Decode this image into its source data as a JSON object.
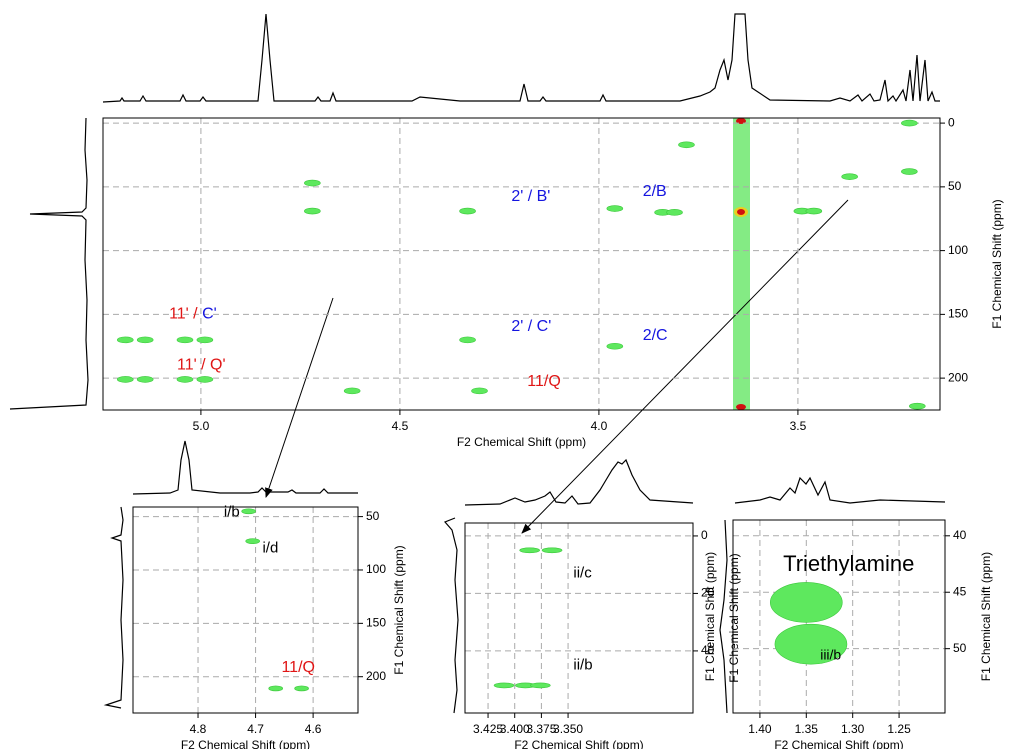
{
  "chart_data": [
    {
      "type": "contour",
      "x_label": "F2 Chemical Shift (ppm)",
      "y_label": "F1 Chemical Shift (ppm)",
      "xlim": [
        5.246,
        3.143
      ],
      "ylim": [
        -4,
        225
      ],
      "xticks": [
        {
          "value": 5.0,
          "label": "5.0"
        },
        4.5,
        {
          "value": 4.0,
          "label": "4.0"
        },
        3.5
      ],
      "yticks": [
        0,
        50,
        100,
        150,
        200
      ],
      "grid": true,
      "color": "#5ee85e",
      "peaks": [
        {
          "x": 4.72,
          "y": 47
        },
        {
          "x": 4.72,
          "y": 69
        },
        {
          "x": 4.33,
          "y": 69
        },
        {
          "x": 3.96,
          "y": 67
        },
        {
          "x": 3.84,
          "y": 70
        },
        {
          "x": 3.81,
          "y": 70
        },
        {
          "x": 3.49,
          "y": 69
        },
        {
          "x": 3.46,
          "y": 69
        },
        {
          "x": 4.33,
          "y": 170
        },
        {
          "x": 3.96,
          "y": 175
        },
        {
          "x": 5.19,
          "y": 170
        },
        {
          "x": 5.14,
          "y": 170
        },
        {
          "x": 5.04,
          "y": 170
        },
        {
          "x": 4.99,
          "y": 170
        },
        {
          "x": 5.19,
          "y": 201
        },
        {
          "x": 5.14,
          "y": 201
        },
        {
          "x": 5.04,
          "y": 201
        },
        {
          "x": 4.99,
          "y": 201
        },
        {
          "x": 4.3,
          "y": 210
        },
        {
          "x": 4.62,
          "y": 210
        },
        {
          "x": 3.78,
          "y": 17
        },
        {
          "x": 3.22,
          "y": 0
        },
        {
          "x": 3.22,
          "y": 38
        },
        {
          "x": 3.37,
          "y": 42
        },
        {
          "x": 3.2,
          "y": 222
        }
      ],
      "annotations": [
        {
          "x": 4.22,
          "y": 58,
          "parts": [
            {
              "text": "2' / B'",
              "color": "#1515e0"
            }
          ]
        },
        {
          "x": 3.89,
          "y": 54,
          "parts": [
            {
              "text": "2/B",
              "color": "#1515e0"
            }
          ]
        },
        {
          "x": 5.08,
          "y": 150,
          "parts": [
            {
              "text": "11' / ",
              "color": "#e01515"
            },
            {
              "text": "C'",
              "color": "#1515e0"
            }
          ]
        },
        {
          "x": 4.22,
          "y": 160,
          "parts": [
            {
              "text": "2' / C'",
              "color": "#1515e0"
            }
          ]
        },
        {
          "x": 3.89,
          "y": 167,
          "parts": [
            {
              "text": "2/C",
              "color": "#1515e0"
            }
          ]
        },
        {
          "x": 5.06,
          "y": 190,
          "parts": [
            {
              "text": "11' / Q'",
              "color": "#e01515"
            }
          ]
        },
        {
          "x": 4.18,
          "y": 203,
          "parts": [
            {
              "text": "11/Q",
              "color": "#e01515"
            }
          ]
        }
      ]
    },
    {
      "type": "contour",
      "x_label": "F2 Chemical Shift (ppm)",
      "y_label": "F1 Chemical Shift (ppm)",
      "xlim": [
        4.913,
        4.522
      ],
      "ylim": [
        41,
        234
      ],
      "xticks": [
        4.8,
        4.7,
        4.6
      ],
      "yticks": [
        50,
        100,
        150,
        200
      ],
      "grid": true,
      "color": "#5ee85e",
      "peaks": [
        {
          "x": 4.712,
          "y": 45
        },
        {
          "x": 4.705,
          "y": 73
        },
        {
          "x": 4.665,
          "y": 211
        },
        {
          "x": 4.62,
          "y": 211
        }
      ],
      "annotations": [
        {
          "x": 4.755,
          "y": 46,
          "parts": [
            {
              "text": "i/b",
              "color": "#000000"
            }
          ]
        },
        {
          "x": 4.688,
          "y": 80,
          "parts": [
            {
              "text": "i/d",
              "color": "#000000"
            }
          ]
        },
        {
          "x": 4.655,
          "y": 192,
          "parts": [
            {
              "text": "11/Q",
              "color": "#e01515"
            }
          ]
        }
      ]
    },
    {
      "type": "contour",
      "x_label": "F2 Chemical Shift (ppm)",
      "y_label": "F1 Chemical Shift (ppm)",
      "xlim": [
        3.4466,
        3.2329
      ],
      "ylim": [
        -4.5,
        61.6
      ],
      "xticks": [
        {
          "value": 3.425,
          "label": "3.425"
        },
        {
          "value": 3.4,
          "label": "3.400"
        },
        3.375,
        {
          "value": 3.35,
          "label": "3.350"
        }
      ],
      "yticks": [
        0,
        20,
        40
      ],
      "grid": true,
      "color": "#5ee85e",
      "peaks": [
        {
          "x": 3.386,
          "y": 5
        },
        {
          "x": 3.365,
          "y": 5
        },
        {
          "x": 3.41,
          "y": 52
        },
        {
          "x": 3.39,
          "y": 52
        },
        {
          "x": 3.376,
          "y": 52
        }
      ],
      "annotations": [
        {
          "x": 3.345,
          "y": 13,
          "parts": [
            {
              "text": "ii/c",
              "color": "#000000"
            }
          ]
        },
        {
          "x": 3.345,
          "y": 45,
          "parts": [
            {
              "text": "ii/b",
              "color": "#000000"
            }
          ]
        }
      ]
    },
    {
      "type": "contour",
      "x_label": "F2 Chemical Shift (ppm)",
      "y_label": "F1 Chemical Shift (ppm)",
      "y_label_left": "F1 Chemical Shift (ppm)",
      "xlim": [
        1.429,
        1.2005
      ],
      "ylim": [
        38.6,
        55.7
      ],
      "xticks": [
        {
          "value": 1.4,
          "label": "1.40"
        },
        1.35,
        {
          "value": 1.3,
          "label": "1.30"
        },
        1.25
      ],
      "yticks": [
        40,
        45,
        50
      ],
      "grid": true,
      "color": "#5ee85e",
      "peaks": [
        {
          "x": 1.35,
          "y": 45.9
        },
        {
          "x": 1.345,
          "y": 49.6
        }
      ],
      "annotations": [
        {
          "x": 1.375,
          "y": 42.6,
          "parts": [
            {
              "text": "Triethylamine",
              "color": "#000000"
            }
          ]
        },
        {
          "x": 1.335,
          "y": 50.6,
          "parts": [
            {
              "text": "iii/b",
              "color": "#000000"
            }
          ]
        }
      ]
    }
  ]
}
